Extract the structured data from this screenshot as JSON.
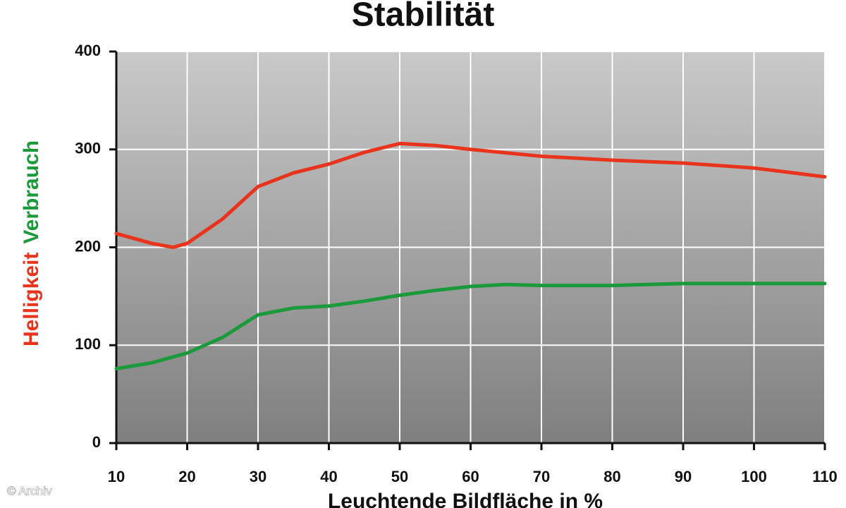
{
  "chart_data": {
    "type": "line",
    "title": "Stabilität",
    "x_label": "Leuchtende Bildfläche in %",
    "credit": "© Archiv",
    "xlim": [
      10,
      110
    ],
    "xticks": [
      10,
      20,
      30,
      40,
      50,
      60,
      70,
      80,
      90,
      100,
      110
    ],
    "ylim": [
      0,
      400
    ],
    "yticks": [
      0,
      100,
      200,
      300,
      400
    ],
    "grid": true,
    "series": [
      {
        "name": "Helligkeit",
        "color": "#e8341c",
        "x": [
          10,
          15,
          18,
          20,
          25,
          30,
          35,
          40,
          45,
          50,
          55,
          60,
          70,
          80,
          90,
          100,
          110
        ],
        "values": [
          214,
          204,
          200,
          204,
          229,
          262,
          276,
          285,
          297,
          306,
          304,
          300,
          293,
          289,
          286,
          281,
          272
        ]
      },
      {
        "name": "Verbrauch",
        "color": "#1a9a3a",
        "x": [
          10,
          15,
          20,
          25,
          30,
          35,
          40,
          45,
          50,
          55,
          60,
          65,
          70,
          80,
          90,
          110
        ],
        "values": [
          76,
          82,
          92,
          108,
          131,
          138,
          140,
          145,
          151,
          156,
          160,
          162,
          161,
          161,
          163,
          163
        ]
      }
    ]
  }
}
